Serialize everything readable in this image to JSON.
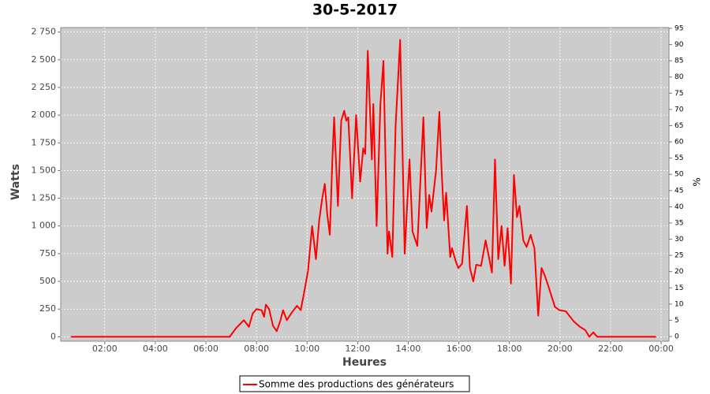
{
  "chart_data": {
    "type": "line",
    "title": "30-5-2017",
    "xlabel": "Heures",
    "ylabel": "Watts",
    "y2label": "%",
    "x": [
      0.66,
      2,
      4,
      6,
      6.8,
      6.94,
      7.2,
      7.5,
      7.7,
      7.85,
      8.0,
      8.2,
      8.3,
      8.37,
      8.5,
      8.65,
      8.8,
      8.95,
      9.05,
      9.2,
      9.4,
      9.6,
      9.75,
      9.9,
      10.04,
      10.2,
      10.35,
      10.48,
      10.6,
      10.7,
      10.8,
      10.9,
      11.0,
      11.07,
      11.22,
      11.35,
      11.47,
      11.55,
      11.63,
      11.78,
      11.94,
      12.1,
      12.22,
      12.3,
      12.4,
      12.56,
      12.62,
      12.75,
      12.9,
      13.02,
      13.18,
      13.24,
      13.37,
      13.5,
      13.68,
      13.86,
      14.05,
      14.17,
      14.36,
      14.6,
      14.73,
      14.83,
      14.92,
      15.1,
      15.23,
      15.32,
      15.42,
      15.5,
      15.66,
      15.73,
      15.88,
      15.98,
      16.13,
      16.32,
      16.44,
      16.57,
      16.69,
      16.88,
      17.06,
      17.19,
      17.31,
      17.43,
      17.56,
      17.69,
      17.81,
      17.93,
      18.06,
      18.18,
      18.3,
      18.4,
      18.55,
      18.68,
      18.84,
      18.99,
      19.14,
      19.27,
      19.39,
      19.55,
      19.8,
      19.98,
      20.23,
      20.54,
      20.79,
      21.0,
      21.16,
      21.32,
      21.47,
      22.5,
      23.8
    ],
    "series": [
      {
        "name": "Somme des productions des  générateurs",
        "color": "#ff0000",
        "values": [
          0,
          0,
          0,
          0,
          0,
          0,
          80,
          150,
          90,
          210,
          250,
          240,
          180,
          290,
          250,
          100,
          50,
          150,
          240,
          150,
          220,
          280,
          240,
          420,
          600,
          1000,
          700,
          1050,
          1250,
          1380,
          1100,
          920,
          1600,
          1980,
          1180,
          1950,
          2040,
          1950,
          1980,
          1250,
          2000,
          1400,
          1700,
          1650,
          2580,
          1600,
          2100,
          1000,
          2100,
          2490,
          750,
          950,
          720,
          1900,
          2680,
          750,
          1600,
          950,
          820,
          1980,
          980,
          1280,
          1130,
          1500,
          2030,
          1500,
          1050,
          1300,
          720,
          800,
          680,
          620,
          660,
          1180,
          620,
          500,
          650,
          640,
          870,
          720,
          580,
          1600,
          700,
          1000,
          640,
          980,
          480,
          1460,
          1080,
          1180,
          870,
          810,
          920,
          800,
          190,
          620,
          560,
          450,
          270,
          240,
          230,
          140,
          90,
          60,
          0,
          40,
          0,
          0,
          0
        ]
      }
    ],
    "xlim": [
      0.26,
      24.31
    ],
    "xticks": [
      {
        "value": 2,
        "label": "02:00"
      },
      {
        "value": 4,
        "label": "04:00"
      },
      {
        "value": 6,
        "label": "06:00"
      },
      {
        "value": 8,
        "label": "08:00"
      },
      {
        "value": 10,
        "label": "10:00"
      },
      {
        "value": 12,
        "label": "12:00"
      },
      {
        "value": 14,
        "label": "14:00"
      },
      {
        "value": 16,
        "label": "16:00"
      },
      {
        "value": 18,
        "label": "18:00"
      },
      {
        "value": 20,
        "label": "20:00"
      },
      {
        "value": 22,
        "label": "22:00"
      },
      {
        "value": 24,
        "label": "00:00"
      }
    ],
    "ylim": [
      -40,
      2790
    ],
    "yticks": [
      0,
      250,
      500,
      750,
      {
        "value": 1000,
        "label": "1 000"
      },
      {
        "value": 1250,
        "label": "1 250"
      },
      {
        "value": 1500,
        "label": "1 500"
      },
      {
        "value": 1750,
        "label": "1 750"
      },
      {
        "value": 2000,
        "label": "2 000"
      },
      {
        "value": 2250,
        "label": "2 250"
      },
      {
        "value": 2500,
        "label": "2 500"
      },
      {
        "value": 2750,
        "label": "2 750"
      }
    ],
    "y2lim": [
      -1.46,
      95.24
    ],
    "y2ticks": [
      0,
      5,
      10,
      15,
      20,
      25,
      30,
      35,
      40,
      45,
      50,
      55,
      60,
      65,
      70,
      75,
      80,
      85,
      90,
      95
    ],
    "grid": true,
    "legend": "bottom"
  }
}
